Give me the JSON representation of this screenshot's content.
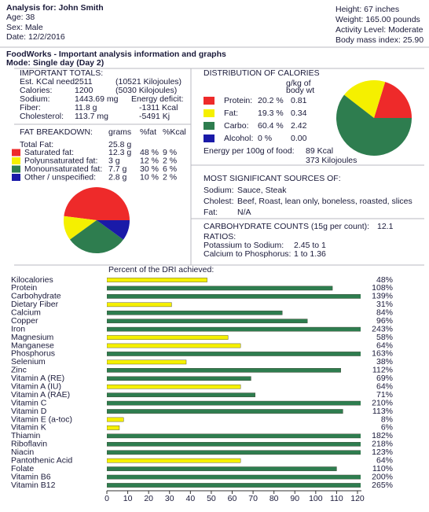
{
  "header": {
    "name": "Analysis for: John Smith",
    "age": "Age: 38",
    "sex": "Sex: Male",
    "date": "Date: 12/2/2016",
    "height": "Height: 67 inches",
    "weight": "Weight: 165.00 pounds",
    "activity": "Activity Level: Moderate",
    "bmi": "Body mass index: 25.90"
  },
  "report": {
    "title": "FoodWorks - Important analysis information and graphs",
    "mode": "Mode: Single day (Day 2)"
  },
  "totals": {
    "title": "IMPORTANT TOTALS:",
    "rows": [
      [
        "Est. KCal need:",
        "2511",
        "(10521 Kilojoules)"
      ],
      [
        "Calories:",
        "1200",
        "(5030 Kilojoules)"
      ],
      [
        "Sodium:",
        "1443.69 mg",
        "Energy deficit:"
      ],
      [
        "Fiber:",
        "11.8 g",
        "-1311 Kcal"
      ],
      [
        "Cholesterol:",
        "113.7 mg",
        "-5491 Kj"
      ]
    ]
  },
  "fat_breakdown": {
    "title": "FAT BREAKDOWN:",
    "columns": [
      "grams",
      "%fat",
      "%Kcal"
    ],
    "total": [
      "Total Fat:",
      "25.8 g"
    ],
    "rows": [
      [
        "Saturated fat:",
        "12.3 g",
        "48 %",
        "9 %"
      ],
      [
        "Polyunsaturated fat:",
        "3 g",
        "12 %",
        "2 %"
      ],
      [
        "Monounsaturated fat:",
        "7.7 g",
        "30 %",
        "6 %"
      ],
      [
        "Other / unspecified:",
        "2.8 g",
        "10 %",
        "2 %"
      ]
    ]
  },
  "calories": {
    "title": "DISTRIBUTION OF CALORIES",
    "column": [
      "g/kg of",
      "body wt"
    ],
    "rows": [
      [
        "Protein:",
        "20.2 %",
        "0.81"
      ],
      [
        "Fat:",
        "19.3 %",
        "0.34"
      ],
      [
        "Carbo:",
        "60.4 %",
        "2.42"
      ],
      [
        "Alcohol:",
        "0 %",
        "0.00"
      ]
    ],
    "energy": [
      "Energy per 100g of food:",
      "89 Kcal",
      "373 Kilojoules"
    ]
  },
  "sources": {
    "title": "MOST SIGNIFICANT SOURCES OF:",
    "rows": [
      [
        "Sodium:",
        "Sauce, Steak"
      ],
      [
        "Cholest:",
        "Beef, Roast, lean only, boneless, roasted, slices"
      ],
      [
        "Fat:",
        "N/A"
      ]
    ]
  },
  "carbs": {
    "title": "CARBOHYDRATE COUNTS (15g per count):",
    "value": "12.1",
    "ratios": "RATIOS:",
    "rows": [
      [
        "Potassium to Sodium:",
        "2.45 to 1"
      ],
      [
        "Calcium to Phosphorus:",
        "1 to 1.36"
      ]
    ]
  },
  "chart_data": [
    {
      "type": "pie",
      "values": [
        48,
        12,
        30,
        10
      ],
      "colors": [
        "#ee2a2a",
        "#f5f000",
        "#2e7d4f",
        "#1a1aa8"
      ]
    },
    {
      "type": "pie",
      "values": [
        20.2,
        19.3,
        60.4,
        0
      ],
      "colors": [
        "#ee2a2a",
        "#f5f000",
        "#2e7d4f",
        "#1a1aa8"
      ]
    },
    {
      "type": "bar",
      "title": "Percent of the DRI achieved:",
      "categories": [
        "Kilocalories",
        "Protein",
        "Carbohydrate",
        "Dietary Fiber",
        "Calcium",
        "Copper",
        "Iron",
        "Magnesium",
        "Manganese",
        "Phosphorus",
        "Selenium",
        "Zinc",
        "Vitamin A (RE)",
        "Vitamin A (IU)",
        "Vitamin A (RAE)",
        "Vitamin C",
        "Vitamin D",
        "Vitamin E (a-toc)",
        "Vitamin K",
        "Thiamin",
        "Riboflavin",
        "Niacin",
        "Pantothenic Acid",
        "Folate",
        "Vitamin B6",
        "Vitamin B12"
      ],
      "values": [
        48,
        108,
        139,
        31,
        84,
        96,
        243,
        58,
        64,
        163,
        38,
        112,
        69,
        64,
        71,
        210,
        113,
        8,
        6,
        182,
        218,
        123,
        64,
        110,
        200,
        265
      ],
      "value_labels": [
        "48%",
        "108%",
        "139%",
        "31%",
        "84%",
        "96%",
        "243%",
        "58%",
        "64%",
        "163%",
        "38%",
        "112%",
        "69%",
        "64%",
        "71%",
        "210%",
        "113%",
        "8%",
        "6%",
        "182%",
        "218%",
        "123%",
        "64%",
        "110%",
        "200%",
        "265%"
      ],
      "colors": [
        "#f5f000",
        "#2e7d4f",
        "#2e7d4f",
        "#f5f000",
        "#2e7d4f",
        "#2e7d4f",
        "#2e7d4f",
        "#f5f000",
        "#f5f000",
        "#2e7d4f",
        "#f5f000",
        "#2e7d4f",
        "#2e7d4f",
        "#f5f000",
        "#2e7d4f",
        "#2e7d4f",
        "#2e7d4f",
        "#f5f000",
        "#f5f000",
        "#2e7d4f",
        "#2e7d4f",
        "#2e7d4f",
        "#f5f000",
        "#2e7d4f",
        "#2e7d4f",
        "#2e7d4f"
      ],
      "xlim": [
        0,
        120
      ],
      "xticks": [
        0,
        10,
        20,
        30,
        40,
        50,
        60,
        70,
        80,
        90,
        100,
        110,
        120
      ]
    }
  ]
}
